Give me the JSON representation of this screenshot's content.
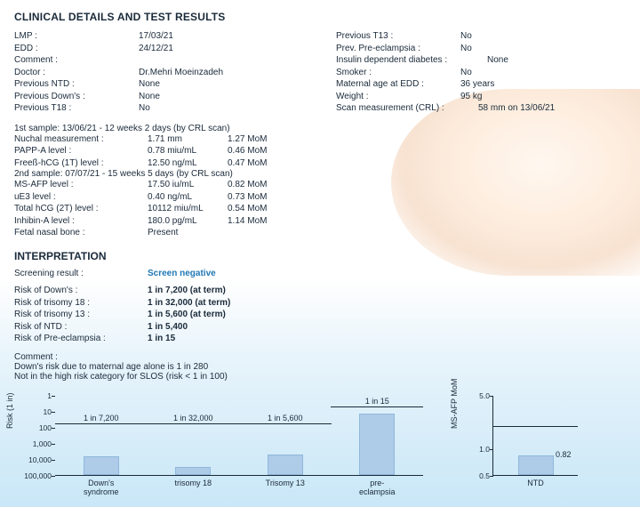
{
  "title": "CLINICAL DETAILS AND TEST RESULTS",
  "left": {
    "lmp_l": "LMP :",
    "lmp_v": "17/03/21",
    "edd_l": "EDD :",
    "edd_v": "24/12/21",
    "comment_l": "Comment :",
    "comment_v": "",
    "doctor_l": "Doctor :",
    "doctor_v": "Dr.Mehri Moeinzadeh",
    "pntd_l": "Previous NTD :",
    "pntd_v": "None",
    "pdown_l": "Previous Down's :",
    "pdown_v": "None",
    "pt18_l": "Previous T18 :",
    "pt18_v": "No"
  },
  "right": {
    "pt13_l": "Previous T13 :",
    "pt13_v": "No",
    "ppe_l": "Prev. Pre-eclampsia :",
    "ppe_v": "No",
    "idd_l": "Insulin dependent diabetes :",
    "idd_v": "None",
    "smoker_l": "Smoker :",
    "smoker_v": "No",
    "mae_l": "Maternal age at EDD :",
    "mae_v": "36 years",
    "weight_l": "Weight :",
    "weight_v": "95 kg",
    "scan_l": "Scan measurement (CRL) :",
    "scan_v": "58 mm on 13/06/21"
  },
  "s": {
    "s1": "1st sample: 13/06/21 - 12 weeks 2 days (by CRL scan)",
    "nuchal_l": "Nuchal measurement :",
    "nuchal_v": "1.71 mm",
    "nuchal_m": "1.27 MoM",
    "pappa_l": "PAPP-A level :",
    "pappa_v": "0.78 miu/mL",
    "pappa_m": "0.46 MoM",
    "fbhcg_l": "Freeß-hCG (1T) level :",
    "fbhcg_v": "12.50 ng/mL",
    "fbhcg_m": "0.47 MoM",
    "s2": "2nd sample: 07/07/21 - 15 weeks 5 days (by CRL scan)",
    "msafp_l": "MS-AFP level :",
    "msafp_v": "17.50 iu/mL",
    "msafp_m": "0.82 MoM",
    "ue3_l": "uE3 level :",
    "ue3_v": "0.40 ng/mL",
    "ue3_m": "0.73 MoM",
    "thcg_l": "Total hCG (2T) level :",
    "thcg_v": "10112 miu/mL",
    "thcg_m": "0.54 MoM",
    "inha_l": "Inhibin-A level :",
    "inha_v": "180.0 pg/mL",
    "inha_m": "1.14 MoM",
    "fnb_l": "Fetal nasal bone :",
    "fnb_v": "Present"
  },
  "interp": {
    "h": "INTERPRETATION",
    "sr_l": "Screening result :",
    "sr_v": "Screen negative",
    "rd_l": "Risk of Down's :",
    "rd_v": "1 in 7,200 (at term)",
    "r18_l": "Risk of trisomy 18 :",
    "r18_v": "1 in 32,000 (at term)",
    "r13_l": "Risk of trisomy 13 :",
    "r13_v": "1 in 5,600 (at term)",
    "rntd_l": "Risk of NTD :",
    "rntd_v": "1 in 5,400",
    "rpe_l": "Risk of Pre-eclampsia :",
    "rpe_v": "1 in 15",
    "c_l": "Comment :",
    "c1": "Down's risk due to maternal age alone is 1 in 280",
    "c2": "Not in the high risk category for SLOS (risk < 1 in 100)"
  },
  "riskChart": {
    "y_label": "Risk (1 in)",
    "yticks": [
      "1",
      "10",
      "100",
      "1,000",
      "10,000",
      "100,000"
    ],
    "bars": [
      {
        "denom": 7200,
        "label": "1 in 7,200",
        "x": "Down's\nsyndrome",
        "guide": 57
      },
      {
        "denom": 32000,
        "label": "1 in 32,000",
        "x": "trisomy 18",
        "guide": 57
      },
      {
        "denom": 5600,
        "label": "1 in 5,600",
        "x": "Trisomy 13",
        "guide": 57
      },
      {
        "denom": 15,
        "label": "1 in 15",
        "x": "pre-\neclampsia",
        "guide": 76
      }
    ],
    "bar_color": "#aecbe8"
  },
  "moChart": {
    "y_label": "MS-AFP MoM",
    "yticks": [
      {
        "v": 0.5,
        "p": 0
      },
      {
        "v": 1.0,
        "p": 33
      },
      {
        "v": 5.0,
        "p": 100
      }
    ],
    "guide_p": 62,
    "bar_value": 0.82,
    "bar_label": "0.82",
    "bar_height_p": 24,
    "x_label": "NTD",
    "bar_color": "#aecbe8"
  }
}
